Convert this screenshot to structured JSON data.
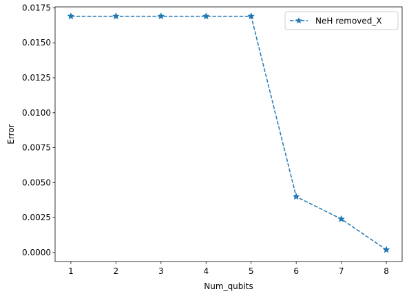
{
  "chart_data": {
    "type": "line",
    "title": "",
    "xlabel": "Num_qubits",
    "ylabel": "Error",
    "x": [
      1,
      2,
      3,
      4,
      5,
      6,
      7,
      8
    ],
    "series": [
      {
        "name": "NeH removed_X",
        "values": [
          0.0169,
          0.0169,
          0.0169,
          0.0169,
          0.0169,
          0.004,
          0.0024,
          0.0002
        ],
        "color": "#1f77b4",
        "line_style": "dashed",
        "marker": "star"
      }
    ],
    "xlim": [
      0.65,
      8.35
    ],
    "ylim": [
      -0.00064,
      0.01757
    ],
    "xticks": [
      1,
      2,
      3,
      4,
      5,
      6,
      7,
      8
    ],
    "xtick_labels": [
      "1",
      "2",
      "3",
      "4",
      "5",
      "6",
      "7",
      "8"
    ],
    "yticks": [
      0.0,
      0.0025,
      0.005,
      0.0075,
      0.01,
      0.0125,
      0.015,
      0.0175
    ],
    "ytick_labels": [
      "0.0000",
      "0.0025",
      "0.0050",
      "0.0075",
      "0.0100",
      "0.0125",
      "0.0150",
      "0.0175"
    ],
    "grid": false,
    "legend_position": "top-right"
  }
}
